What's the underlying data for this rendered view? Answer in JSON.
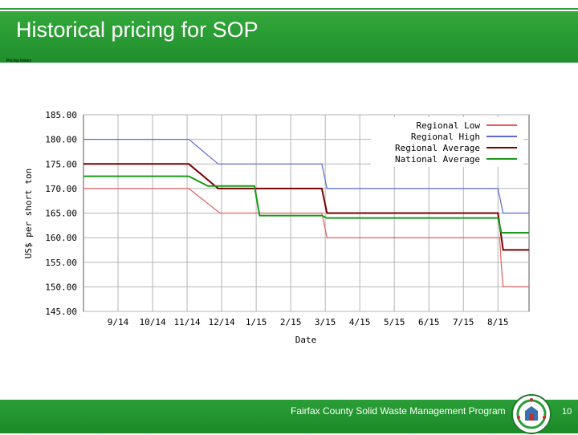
{
  "slide": {
    "title": "Historical pricing for SOP",
    "subtitle": "Pricing history",
    "footer": "Fairfax County Solid Waste Management Program",
    "page_number": "10"
  },
  "colors": {
    "green": "#2e9c3a",
    "regional_low": "#e06060",
    "regional_high": "#5a6ad0",
    "regional_average": "#7a0000",
    "national_average": "#1a9a1a"
  },
  "chart_data": {
    "type": "line",
    "title": "",
    "xlabel": "Date",
    "ylabel": "US$ per short ton",
    "ylim": [
      145,
      185
    ],
    "yticks": [
      "185.00",
      "180.00",
      "175.00",
      "170.00",
      "165.00",
      "160.00",
      "155.00",
      "150.00",
      "145.00"
    ],
    "x_range": [
      0,
      12.9
    ],
    "x_tick_labels": [
      "9/14",
      "10/14",
      "11/14",
      "12/14",
      "1/15",
      "2/15",
      "3/15",
      "4/15",
      "5/15",
      "6/15",
      "7/15",
      "8/15"
    ],
    "x_ticks": [
      1,
      2,
      3,
      4,
      5,
      6,
      7,
      8,
      9,
      10,
      11,
      12
    ],
    "grid": true,
    "legend_position": "top-right",
    "series": [
      {
        "name": "Regional Low",
        "color": "#e06060",
        "points": [
          [
            0,
            170
          ],
          [
            3.05,
            170
          ],
          [
            3.95,
            165
          ],
          [
            6.9,
            165
          ],
          [
            7.05,
            160
          ],
          [
            12.05,
            160
          ],
          [
            12.1,
            154
          ],
          [
            12.15,
            150
          ],
          [
            12.9,
            150
          ]
        ]
      },
      {
        "name": "Regional High",
        "color": "#5a6ad0",
        "points": [
          [
            0,
            180
          ],
          [
            3.05,
            180
          ],
          [
            3.9,
            175
          ],
          [
            6.9,
            175
          ],
          [
            7.05,
            170
          ],
          [
            12.0,
            170
          ],
          [
            12.15,
            165
          ],
          [
            12.9,
            165
          ]
        ]
      },
      {
        "name": "Regional Average",
        "color": "#7a0000",
        "points": [
          [
            0,
            175
          ],
          [
            3.05,
            175
          ],
          [
            3.9,
            170
          ],
          [
            6.9,
            170
          ],
          [
            7.05,
            165
          ],
          [
            12.0,
            165
          ],
          [
            12.1,
            160
          ],
          [
            12.15,
            157.5
          ],
          [
            12.9,
            157.5
          ]
        ]
      },
      {
        "name": "National Average",
        "color": "#1a9a1a",
        "points": [
          [
            0,
            172.5
          ],
          [
            3.05,
            172.5
          ],
          [
            3.6,
            170.5
          ],
          [
            4.95,
            170.5
          ],
          [
            5.1,
            164.5
          ],
          [
            6.9,
            164.5
          ],
          [
            7.05,
            164
          ],
          [
            12.0,
            164
          ],
          [
            12.1,
            161
          ],
          [
            12.9,
            161
          ]
        ]
      }
    ]
  }
}
